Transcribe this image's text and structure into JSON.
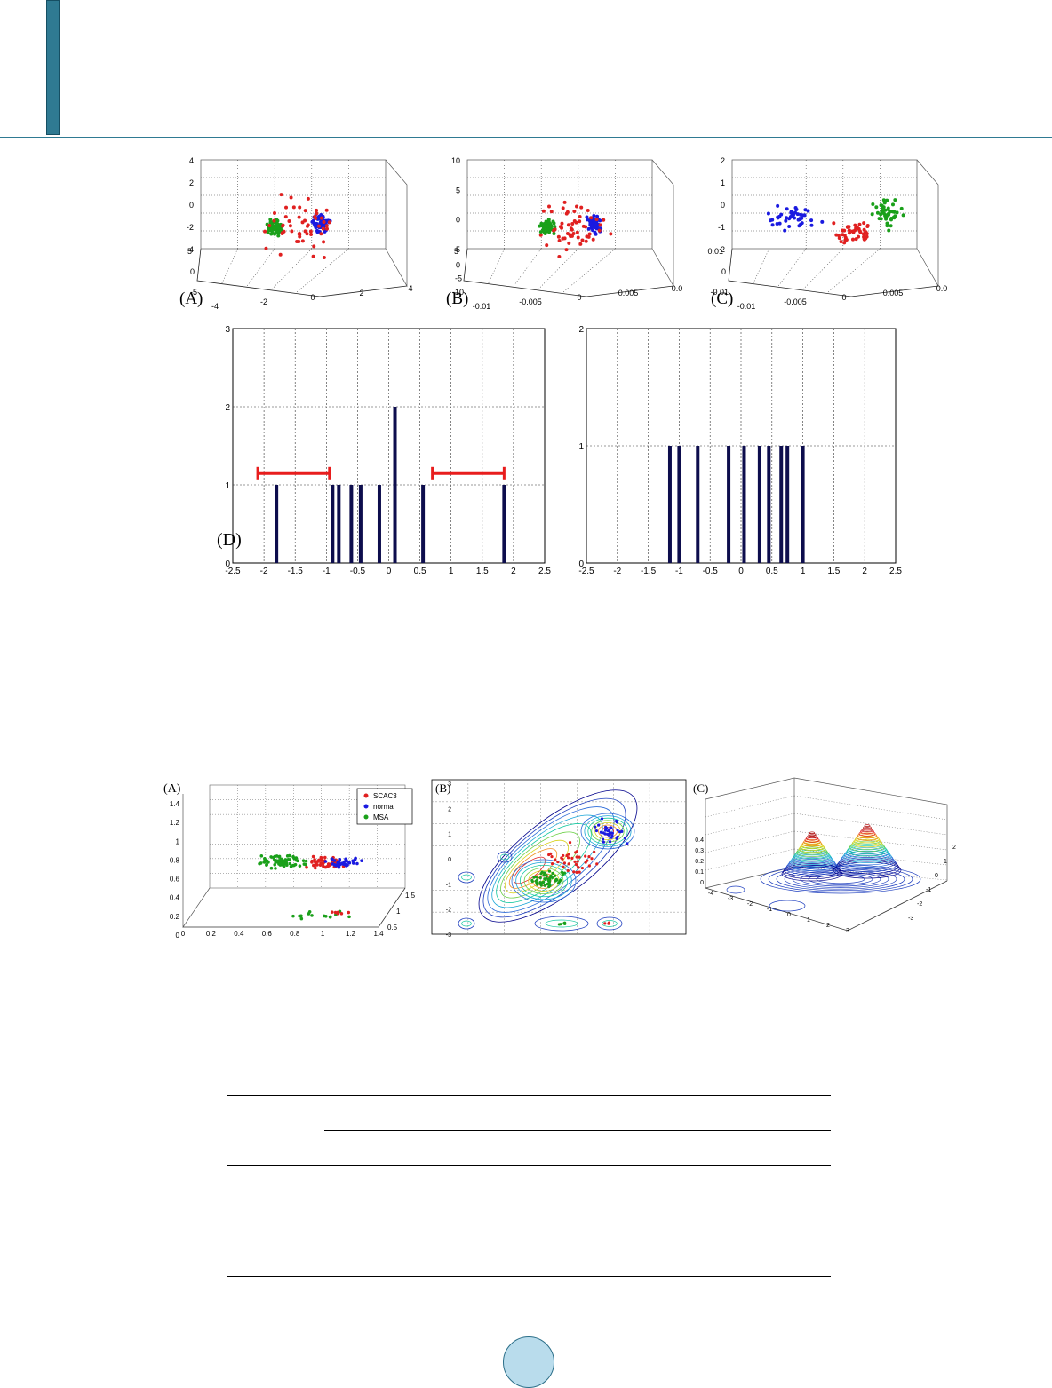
{
  "colors": {
    "accent": "#2f7a92",
    "red": "#e02020",
    "blue": "#1a1ae0",
    "green": "#1aa01a",
    "bar": "#0d0d4d",
    "bracket": "#e81d1d",
    "page_circle": "#b9dcec"
  },
  "figure1": {
    "panels3d": [
      {
        "label": "(A)",
        "z_ticks": [
          "4",
          "2",
          "0",
          "-2",
          "-4"
        ],
        "y_ticks": [
          "5",
          "0",
          "-5"
        ],
        "x_ticks": [
          "-4",
          "-2",
          "0",
          "2",
          "4"
        ]
      },
      {
        "label": "(B)",
        "z_ticks": [
          "10",
          "5",
          "0",
          "-5"
        ],
        "y_ticks": [
          "5",
          "0",
          "-5",
          "-10"
        ],
        "x_ticks": [
          "-0.01",
          "-0.005",
          "0",
          "0.005",
          "0.0"
        ]
      },
      {
        "label": "(C)",
        "z_ticks": [
          "2",
          "1",
          "0",
          "-1",
          "-2"
        ],
        "y_ticks": [
          "0.01",
          "0",
          "-0.01"
        ],
        "x_ticks": [
          "-0.01",
          "-0.005",
          "0",
          "0.005",
          "0.0"
        ]
      }
    ],
    "panel_d_label": "(D)"
  },
  "chart_data": [
    {
      "type": "bar",
      "x": [
        -1.8,
        -0.9,
        -0.8,
        -0.6,
        -0.45,
        -0.15,
        0.1,
        0.55,
        1.85
      ],
      "values": [
        1,
        1,
        1,
        1,
        1,
        1,
        2,
        1,
        1
      ],
      "xlim": [
        -2.5,
        2.5
      ],
      "ylim": [
        0,
        3
      ],
      "x_ticks": [
        "-2.5",
        "-2",
        "-1.5",
        "-1",
        "-0.5",
        "0",
        "0.5",
        "1",
        "1.5",
        "2",
        "2.5"
      ],
      "y_ticks": [
        "0",
        "1",
        "2",
        "3"
      ],
      "intervals": [
        [
          -2.1,
          -0.95
        ],
        [
          0.7,
          1.85
        ]
      ],
      "grid": true
    },
    {
      "type": "bar",
      "x": [
        -1.15,
        -1.0,
        -0.7,
        -0.2,
        0.05,
        0.3,
        0.45,
        0.65,
        0.75,
        1.0
      ],
      "values": [
        1,
        1,
        1,
        1,
        1,
        1,
        1,
        1,
        1,
        1
      ],
      "xlim": [
        -2.5,
        2.5
      ],
      "ylim": [
        0,
        2
      ],
      "x_ticks": [
        "-2.5",
        "-2",
        "-1.5",
        "-1",
        "-0.5",
        "0",
        "0.5",
        "1",
        "1.5",
        "2",
        "2.5"
      ],
      "y_ticks": [
        "0",
        "1",
        "2"
      ],
      "grid": true
    }
  ],
  "figure2": {
    "panel_a": {
      "label": "(A)",
      "legend": [
        "SCAC3",
        "normal",
        "MSA"
      ],
      "z_ticks": [
        "1.4",
        "1.2",
        "1",
        "0.8",
        "0.6",
        "0.4",
        "0.2",
        "0"
      ],
      "x_ticks": [
        "0",
        "0.2",
        "0.4",
        "0.6",
        "0.8",
        "1",
        "1.2",
        "1.4"
      ],
      "y_ticks": [
        "0.5",
        "1",
        "1.5"
      ]
    },
    "panel_b": {
      "label": "(B)",
      "y_ticks": [
        "3",
        "2",
        "1",
        "0",
        "-1",
        "-2",
        "-3"
      ]
    },
    "panel_c": {
      "label": "(C)",
      "z_ticks": [
        "0.4",
        "0.3",
        "0.2",
        "0.1",
        "0"
      ],
      "x_ticks": [
        "-4",
        "-3",
        "-2",
        "-1",
        "0",
        "1",
        "2",
        "3"
      ],
      "y_ticks": [
        "2",
        "1",
        "0",
        "-1",
        "-2",
        "-3"
      ]
    }
  }
}
